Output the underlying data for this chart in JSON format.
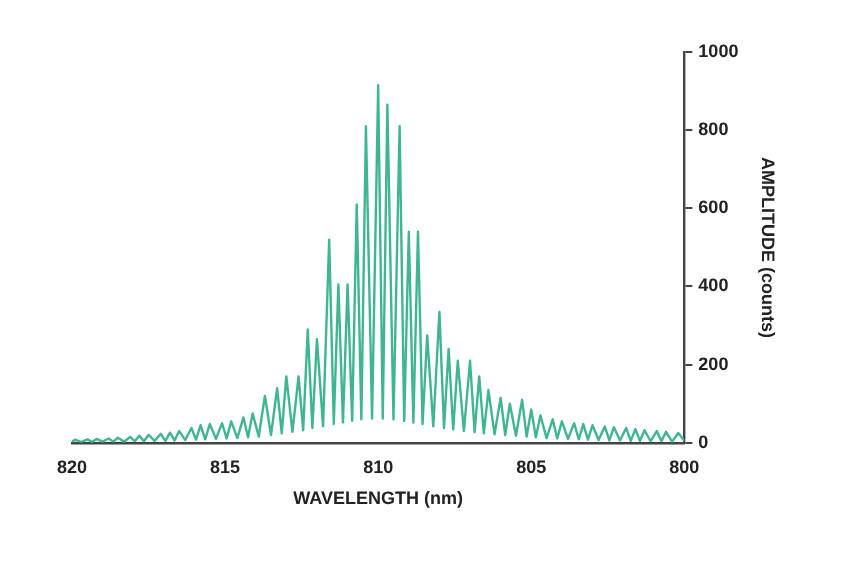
{
  "chart_data": {
    "type": "line",
    "xlabel": "WAVELENGTH (nm)",
    "ylabel": "AMPLITUDE (counts)",
    "color": "#3fb594",
    "xlim": [
      820,
      800
    ],
    "xticks": [
      820,
      815,
      810,
      805,
      800
    ],
    "ylim": [
      0,
      1000
    ],
    "yticks": [
      0,
      200,
      400,
      600,
      800,
      1000
    ],
    "grid": false,
    "legend": false,
    "marker": "none",
    "line_style": "solid",
    "x": [
      820.0,
      819.9,
      819.7,
      819.5,
      819.35,
      819.2,
      819.0,
      818.8,
      818.65,
      818.5,
      818.3,
      818.1,
      817.95,
      817.8,
      817.65,
      817.5,
      817.3,
      817.1,
      816.95,
      816.8,
      816.65,
      816.5,
      816.3,
      816.1,
      815.95,
      815.8,
      815.65,
      815.5,
      815.3,
      815.1,
      814.95,
      814.8,
      814.6,
      814.4,
      814.25,
      814.1,
      813.9,
      813.7,
      813.5,
      813.3,
      813.15,
      813.0,
      812.8,
      812.6,
      812.45,
      812.3,
      812.15,
      812.0,
      811.8,
      811.6,
      811.45,
      811.3,
      811.15,
      811.0,
      810.85,
      810.7,
      810.55,
      810.4,
      810.2,
      810.0,
      809.85,
      809.7,
      809.5,
      809.3,
      809.15,
      809.0,
      808.85,
      808.7,
      808.55,
      808.4,
      808.2,
      808.0,
      807.85,
      807.7,
      807.55,
      807.4,
      807.2,
      807.0,
      806.85,
      806.7,
      806.55,
      806.4,
      806.2,
      806.0,
      805.85,
      805.7,
      805.5,
      805.3,
      805.15,
      805.0,
      804.85,
      804.7,
      804.5,
      804.3,
      804.15,
      804.0,
      803.8,
      803.6,
      803.45,
      803.3,
      803.15,
      803.0,
      802.8,
      802.6,
      802.45,
      802.3,
      802.1,
      801.9,
      801.75,
      801.6,
      801.45,
      801.3,
      801.1,
      800.9,
      800.75,
      800.6,
      800.4,
      800.2,
      800.0
    ],
    "values": [
      3,
      8,
      2,
      9,
      2,
      10,
      3,
      11,
      3,
      13,
      3,
      15,
      4,
      18,
      4,
      20,
      5,
      23,
      5,
      26,
      6,
      30,
      7,
      38,
      8,
      45,
      9,
      48,
      10,
      50,
      11,
      55,
      12,
      65,
      14,
      75,
      16,
      120,
      20,
      140,
      24,
      170,
      28,
      170,
      32,
      290,
      38,
      265,
      42,
      520,
      48,
      405,
      52,
      405,
      56,
      610,
      60,
      810,
      62,
      915,
      62,
      865,
      60,
      810,
      56,
      540,
      52,
      540,
      48,
      275,
      42,
      335,
      38,
      240,
      34,
      210,
      30,
      210,
      27,
      170,
      24,
      135,
      22,
      115,
      20,
      100,
      18,
      110,
      16,
      85,
      14,
      70,
      12,
      60,
      11,
      55,
      10,
      50,
      9,
      48,
      8,
      45,
      7,
      42,
      6,
      40,
      6,
      38,
      5,
      35,
      5,
      32,
      4,
      30,
      4,
      28,
      3,
      25,
      5
    ]
  }
}
